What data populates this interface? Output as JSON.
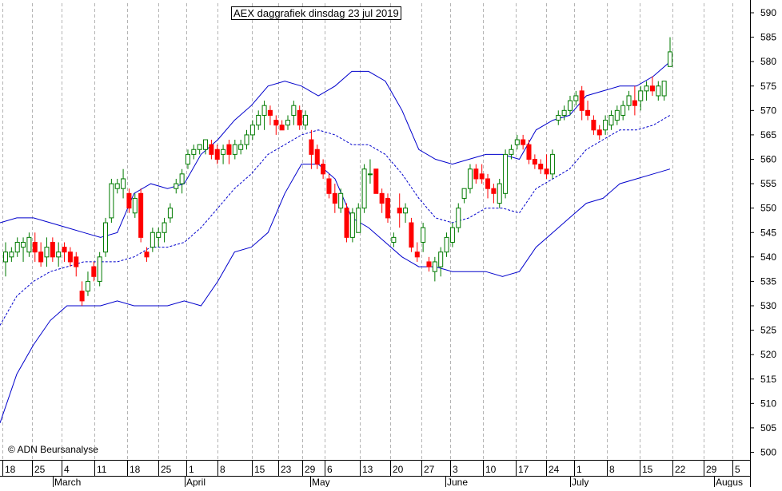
{
  "chart_data": {
    "type": "candlestick",
    "title": "AEX daggrafiek dinsdag 23 jul 2019",
    "copyright": "© ADN Beursanalyse",
    "y_axis": {
      "min": 500,
      "max": 590,
      "step": 5,
      "side": "right",
      "ticks": [
        "500",
        "505",
        "510",
        "515",
        "520",
        "525",
        "530",
        "535",
        "540",
        "545",
        "550",
        "555",
        "560",
        "565",
        "570",
        "575",
        "580",
        "585",
        "590"
      ]
    },
    "x_axis": {
      "day_labels": [
        "18",
        "25",
        "4",
        "11",
        "18",
        "25",
        "1",
        "8",
        "15",
        "23",
        "29",
        "6",
        "13",
        "20",
        "27",
        "3",
        "10",
        "17",
        "24",
        "1",
        "8",
        "15",
        "22",
        "29",
        "5"
      ],
      "month_labels": [
        "March",
        "April",
        "May",
        "June",
        "July",
        "Augus"
      ]
    },
    "colors": {
      "up": "#007a00",
      "down": "#ff0000",
      "band": "#0000cc",
      "grid": "#b4b4b4"
    },
    "candles": [
      {
        "o": 539,
        "h": 543,
        "l": 536,
        "c": 541
      },
      {
        "o": 540,
        "h": 542,
        "l": 539,
        "c": 541
      },
      {
        "o": 541,
        "h": 544,
        "l": 540,
        "c": 543
      },
      {
        "o": 542,
        "h": 544,
        "l": 539,
        "c": 543
      },
      {
        "o": 541,
        "h": 545,
        "l": 540,
        "c": 544
      },
      {
        "o": 543,
        "h": 545,
        "l": 539,
        "c": 541
      },
      {
        "o": 541,
        "h": 543,
        "l": 538,
        "c": 539
      },
      {
        "o": 540,
        "h": 544,
        "l": 538,
        "c": 542
      },
      {
        "o": 543,
        "h": 544,
        "l": 539,
        "c": 540
      },
      {
        "o": 540,
        "h": 543,
        "l": 538,
        "c": 541
      },
      {
        "o": 542,
        "h": 543,
        "l": 539,
        "c": 541
      },
      {
        "o": 541,
        "h": 542,
        "l": 538,
        "c": 539
      },
      {
        "o": 540,
        "h": 541,
        "l": 536,
        "c": 538
      },
      {
        "o": 533,
        "h": 535,
        "l": 530,
        "c": 531
      },
      {
        "o": 533,
        "h": 537,
        "l": 532,
        "c": 535
      },
      {
        "o": 538,
        "h": 539,
        "l": 535,
        "c": 536
      },
      {
        "o": 535,
        "h": 541,
        "l": 534,
        "c": 540
      },
      {
        "o": 541,
        "h": 548,
        "l": 540,
        "c": 547
      },
      {
        "o": 548,
        "h": 556,
        "l": 547,
        "c": 555
      },
      {
        "o": 554,
        "h": 556,
        "l": 553,
        "c": 555
      },
      {
        "o": 554,
        "h": 558,
        "l": 552,
        "c": 556
      },
      {
        "o": 553,
        "h": 554,
        "l": 549,
        "c": 550
      },
      {
        "o": 549,
        "h": 553,
        "l": 548,
        "c": 552
      },
      {
        "o": 553,
        "h": 554,
        "l": 543,
        "c": 544
      },
      {
        "o": 541,
        "h": 542,
        "l": 539,
        "c": 540
      },
      {
        "o": 542,
        "h": 546,
        "l": 541,
        "c": 545
      },
      {
        "o": 544,
        "h": 546,
        "l": 542,
        "c": 545
      },
      {
        "o": 545,
        "h": 548,
        "l": 543,
        "c": 547
      },
      {
        "o": 548,
        "h": 551,
        "l": 547,
        "c": 550
      },
      {
        "o": 554,
        "h": 556,
        "l": 553,
        "c": 555
      },
      {
        "o": 555,
        "h": 558,
        "l": 553,
        "c": 557
      },
      {
        "o": 559,
        "h": 562,
        "l": 558,
        "c": 561
      },
      {
        "o": 561,
        "h": 563,
        "l": 560,
        "c": 562
      },
      {
        "o": 562,
        "h": 563,
        "l": 561,
        "c": 563
      },
      {
        "o": 562,
        "h": 564,
        "l": 561,
        "c": 564
      },
      {
        "o": 563,
        "h": 564,
        "l": 560,
        "c": 561
      },
      {
        "o": 562,
        "h": 563,
        "l": 559,
        "c": 560
      },
      {
        "o": 561,
        "h": 563,
        "l": 559,
        "c": 562
      },
      {
        "o": 563,
        "h": 564,
        "l": 559,
        "c": 561
      },
      {
        "o": 561,
        "h": 564,
        "l": 560,
        "c": 563
      },
      {
        "o": 562,
        "h": 564,
        "l": 561,
        "c": 563
      },
      {
        "o": 563,
        "h": 566,
        "l": 562,
        "c": 565
      },
      {
        "o": 565,
        "h": 568,
        "l": 564,
        "c": 567
      },
      {
        "o": 567,
        "h": 570,
        "l": 566,
        "c": 569
      },
      {
        "o": 569,
        "h": 572,
        "l": 566,
        "c": 571
      },
      {
        "o": 570,
        "h": 571,
        "l": 567,
        "c": 569
      },
      {
        "o": 568,
        "h": 569,
        "l": 565,
        "c": 567
      },
      {
        "o": 567,
        "h": 568,
        "l": 566,
        "c": 566
      },
      {
        "o": 567,
        "h": 569,
        "l": 566,
        "c": 568
      },
      {
        "o": 569,
        "h": 572,
        "l": 567,
        "c": 571
      },
      {
        "o": 570,
        "h": 571,
        "l": 566,
        "c": 567
      },
      {
        "o": 567,
        "h": 570,
        "l": 566,
        "c": 569
      },
      {
        "o": 564,
        "h": 566,
        "l": 558,
        "c": 561
      },
      {
        "o": 562,
        "h": 563,
        "l": 558,
        "c": 559
      },
      {
        "o": 559,
        "h": 560,
        "l": 556,
        "c": 557
      },
      {
        "o": 556,
        "h": 557,
        "l": 552,
        "c": 553
      },
      {
        "o": 553,
        "h": 555,
        "l": 549,
        "c": 551
      },
      {
        "o": 550,
        "h": 554,
        "l": 549,
        "c": 553
      },
      {
        "o": 550,
        "h": 551,
        "l": 543,
        "c": 544
      },
      {
        "o": 544,
        "h": 550,
        "l": 543,
        "c": 549
      },
      {
        "o": 545,
        "h": 551,
        "l": 545,
        "c": 550
      },
      {
        "o": 550,
        "h": 559,
        "l": 549,
        "c": 558
      },
      {
        "o": 557,
        "h": 560,
        "l": 555,
        "c": 557
      },
      {
        "o": 558,
        "h": 558,
        "l": 553,
        "c": 553
      },
      {
        "o": 553,
        "h": 554,
        "l": 549,
        "c": 551
      },
      {
        "o": 552,
        "h": 553,
        "l": 547,
        "c": 548
      },
      {
        "o": 543,
        "h": 545,
        "l": 542,
        "c": 544
      },
      {
        "o": 550,
        "h": 553,
        "l": 546,
        "c": 549
      },
      {
        "o": 549,
        "h": 551,
        "l": 547,
        "c": 550
      },
      {
        "o": 547,
        "h": 548,
        "l": 541,
        "c": 542
      },
      {
        "o": 541,
        "h": 543,
        "l": 539,
        "c": 540
      },
      {
        "o": 543,
        "h": 547,
        "l": 541,
        "c": 546
      },
      {
        "o": 539,
        "h": 540,
        "l": 537,
        "c": 538
      },
      {
        "o": 537,
        "h": 540,
        "l": 535,
        "c": 539
      },
      {
        "o": 538,
        "h": 542,
        "l": 536,
        "c": 541
      },
      {
        "o": 541,
        "h": 545,
        "l": 540,
        "c": 544
      },
      {
        "o": 543,
        "h": 547,
        "l": 542,
        "c": 546
      },
      {
        "o": 546,
        "h": 551,
        "l": 545,
        "c": 550
      },
      {
        "o": 552,
        "h": 554,
        "l": 551,
        "c": 554
      },
      {
        "o": 554,
        "h": 559,
        "l": 553,
        "c": 558
      },
      {
        "o": 558,
        "h": 559,
        "l": 555,
        "c": 556
      },
      {
        "o": 557,
        "h": 559,
        "l": 555,
        "c": 556
      },
      {
        "o": 556,
        "h": 557,
        "l": 552,
        "c": 554
      },
      {
        "o": 554,
        "h": 555,
        "l": 551,
        "c": 553
      },
      {
        "o": 551,
        "h": 556,
        "l": 550,
        "c": 555
      },
      {
        "o": 553,
        "h": 562,
        "l": 552,
        "c": 561
      },
      {
        "o": 561,
        "h": 563,
        "l": 560,
        "c": 562
      },
      {
        "o": 563,
        "h": 565,
        "l": 562,
        "c": 564
      },
      {
        "o": 564,
        "h": 565,
        "l": 562,
        "c": 563
      },
      {
        "o": 563,
        "h": 564,
        "l": 559,
        "c": 560
      },
      {
        "o": 560,
        "h": 561,
        "l": 558,
        "c": 559
      },
      {
        "o": 559,
        "h": 560,
        "l": 557,
        "c": 558
      },
      {
        "o": 558,
        "h": 561,
        "l": 556,
        "c": 557
      },
      {
        "o": 557,
        "h": 562,
        "l": 556,
        "c": 561
      },
      {
        "o": 568,
        "h": 570,
        "l": 567,
        "c": 569
      },
      {
        "o": 569,
        "h": 571,
        "l": 568,
        "c": 570
      },
      {
        "o": 570,
        "h": 573,
        "l": 569,
        "c": 572
      },
      {
        "o": 572,
        "h": 574,
        "l": 571,
        "c": 573
      },
      {
        "o": 574,
        "h": 575,
        "l": 568,
        "c": 570
      },
      {
        "o": 570,
        "h": 572,
        "l": 568,
        "c": 569
      },
      {
        "o": 568,
        "h": 569,
        "l": 565,
        "c": 566
      },
      {
        "o": 566,
        "h": 567,
        "l": 564,
        "c": 565
      },
      {
        "o": 566,
        "h": 569,
        "l": 565,
        "c": 568
      },
      {
        "o": 567,
        "h": 570,
        "l": 566,
        "c": 569
      },
      {
        "o": 568,
        "h": 571,
        "l": 567,
        "c": 570
      },
      {
        "o": 569,
        "h": 572,
        "l": 568,
        "c": 571
      },
      {
        "o": 571,
        "h": 574,
        "l": 570,
        "c": 573
      },
      {
        "o": 572,
        "h": 575,
        "l": 569,
        "c": 571
      },
      {
        "o": 572,
        "h": 575,
        "l": 570,
        "c": 574
      },
      {
        "o": 574,
        "h": 576,
        "l": 572,
        "c": 575
      },
      {
        "o": 575,
        "h": 577,
        "l": 573,
        "c": 574
      },
      {
        "o": 573,
        "h": 576,
        "l": 572,
        "c": 575
      },
      {
        "o": 573,
        "h": 576,
        "l": 572,
        "c": 576
      },
      {
        "o": 579,
        "h": 585,
        "l": 579,
        "c": 582
      }
    ],
    "bands": {
      "upper": [
        [
          0,
          547
        ],
        [
          5,
          548
        ],
        [
          10,
          548
        ],
        [
          15,
          547
        ],
        [
          20,
          546
        ],
        [
          25,
          545
        ],
        [
          30,
          544
        ],
        [
          35,
          545
        ],
        [
          40,
          553
        ],
        [
          45,
          555
        ],
        [
          50,
          554
        ],
        [
          55,
          555
        ],
        [
          60,
          561
        ],
        [
          65,
          564
        ],
        [
          70,
          568
        ],
        [
          75,
          571
        ],
        [
          80,
          575
        ],
        [
          85,
          576
        ],
        [
          90,
          575
        ],
        [
          95,
          573
        ],
        [
          100,
          575
        ],
        [
          105,
          578
        ],
        [
          110,
          578
        ],
        [
          115,
          576
        ],
        [
          120,
          570
        ],
        [
          125,
          562
        ],
        [
          130,
          560
        ],
        [
          135,
          559
        ],
        [
          140,
          560
        ],
        [
          145,
          561
        ],
        [
          150,
          561
        ],
        [
          155,
          560
        ],
        [
          160,
          566
        ],
        [
          165,
          568
        ],
        [
          170,
          569
        ],
        [
          175,
          573
        ],
        [
          180,
          574
        ],
        [
          185,
          575
        ],
        [
          190,
          575
        ],
        [
          195,
          577
        ],
        [
          200,
          580
        ]
      ],
      "middle": [
        [
          0,
          526
        ],
        [
          5,
          532
        ],
        [
          10,
          535
        ],
        [
          15,
          537
        ],
        [
          20,
          538
        ],
        [
          25,
          539
        ],
        [
          30,
          539
        ],
        [
          35,
          539
        ],
        [
          40,
          540
        ],
        [
          45,
          542
        ],
        [
          50,
          542
        ],
        [
          55,
          543
        ],
        [
          60,
          546
        ],
        [
          65,
          550
        ],
        [
          70,
          554
        ],
        [
          75,
          557
        ],
        [
          80,
          561
        ],
        [
          85,
          563
        ],
        [
          90,
          565
        ],
        [
          95,
          566
        ],
        [
          100,
          565
        ],
        [
          105,
          563
        ],
        [
          110,
          563
        ],
        [
          115,
          561
        ],
        [
          120,
          557
        ],
        [
          125,
          552
        ],
        [
          130,
          548
        ],
        [
          135,
          547
        ],
        [
          140,
          548
        ],
        [
          145,
          550
        ],
        [
          150,
          550
        ],
        [
          155,
          549
        ],
        [
          160,
          554
        ],
        [
          165,
          556
        ],
        [
          170,
          558
        ],
        [
          175,
          562
        ],
        [
          180,
          564
        ],
        [
          185,
          566
        ],
        [
          190,
          566
        ],
        [
          195,
          567
        ],
        [
          200,
          569
        ]
      ],
      "lower": [
        [
          0,
          506
        ],
        [
          5,
          516
        ],
        [
          10,
          522
        ],
        [
          15,
          527
        ],
        [
          20,
          530
        ],
        [
          25,
          530
        ],
        [
          30,
          530
        ],
        [
          35,
          531
        ],
        [
          40,
          530
        ],
        [
          45,
          530
        ],
        [
          50,
          530
        ],
        [
          55,
          531
        ],
        [
          60,
          530
        ],
        [
          65,
          535
        ],
        [
          70,
          541
        ],
        [
          75,
          542
        ],
        [
          80,
          545
        ],
        [
          85,
          553
        ],
        [
          90,
          559
        ],
        [
          95,
          559
        ],
        [
          100,
          556
        ],
        [
          105,
          548
        ],
        [
          110,
          546
        ],
        [
          115,
          543
        ],
        [
          120,
          540
        ],
        [
          125,
          538
        ],
        [
          130,
          538
        ],
        [
          135,
          537
        ],
        [
          140,
          537
        ],
        [
          145,
          537
        ],
        [
          150,
          536
        ],
        [
          155,
          537
        ],
        [
          160,
          542
        ],
        [
          165,
          545
        ],
        [
          170,
          548
        ],
        [
          175,
          551
        ],
        [
          180,
          552
        ],
        [
          185,
          555
        ],
        [
          190,
          556
        ],
        [
          195,
          557
        ],
        [
          200,
          558
        ]
      ]
    }
  }
}
